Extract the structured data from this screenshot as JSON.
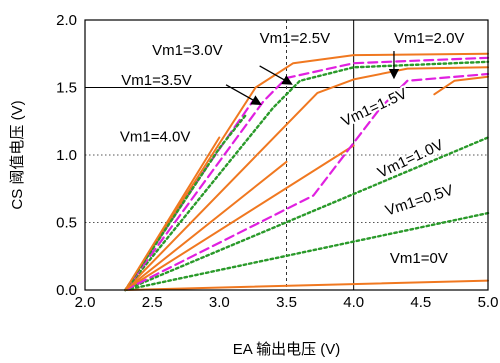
{
  "chart_data": {
    "type": "line",
    "xlabel": "EA 输出电压 (V)",
    "ylabel": "CS 阈值电压 (V)",
    "xlim": [
      2.0,
      5.0
    ],
    "ylim": [
      0.0,
      2.0
    ],
    "x_ticks": [
      "2.0",
      "2.5",
      "3.0",
      "3.5",
      "4.0",
      "4.5",
      "5.0"
    ],
    "y_ticks": [
      "0.0",
      "0.5",
      "1.0",
      "1.5",
      "2.0"
    ],
    "grid": {
      "solid": [
        4.0
      ],
      "dotted_x": [
        3.5
      ],
      "dotted_y": [
        0.5,
        1.0,
        1.5
      ]
    },
    "colors": {
      "orange": "#f07820",
      "green": "#2a9a2a",
      "magenta": "#e020e0"
    },
    "series": [
      {
        "label": "Vm1=0V",
        "style": "orange-solid",
        "points": [
          [
            2.3,
            0.0
          ],
          [
            5.0,
            0.07
          ]
        ]
      },
      {
        "label": "Vm1=0.5V",
        "style": "green-dotted",
        "points": [
          [
            2.3,
            0.0
          ],
          [
            5.0,
            0.57
          ]
        ]
      },
      {
        "label": "Vm1=1.0V",
        "style": "green-dotted",
        "points": [
          [
            2.3,
            0.0
          ],
          [
            5.0,
            1.13
          ]
        ]
      },
      {
        "label": "Vm1=1.5V",
        "style": "orange-solid",
        "points": [
          [
            2.3,
            0.0
          ],
          [
            4.0,
            1.07
          ]
        ]
      },
      {
        "label": "Vm1=1.5V",
        "style": "magenta-dashed",
        "points": [
          [
            2.3,
            0.0
          ],
          [
            3.7,
            0.7
          ],
          [
            4.2,
            1.35
          ],
          [
            4.4,
            1.55
          ],
          [
            5.0,
            1.6
          ]
        ]
      },
      {
        "label": "Vm1=2.0V",
        "style": "orange-solid",
        "points": [
          [
            2.3,
            0.0
          ],
          [
            3.73,
            1.46
          ],
          [
            4.0,
            1.56
          ],
          [
            4.4,
            1.64
          ],
          [
            5.0,
            1.65
          ]
        ]
      },
      {
        "label": "Vm1=2.0V",
        "style": "orange-solid",
        "points": [
          [
            4.6,
            1.45
          ],
          [
            4.75,
            1.55
          ],
          [
            5.0,
            1.58
          ]
        ]
      },
      {
        "label": "Vm1=2.5V",
        "style": "green-dotted",
        "points": [
          [
            2.3,
            0.0
          ],
          [
            3.4,
            1.35
          ],
          [
            3.6,
            1.55
          ],
          [
            4.0,
            1.65
          ],
          [
            5.0,
            1.69
          ]
        ]
      },
      {
        "label": "Vm1=2.5V",
        "style": "magenta-dashed",
        "points": [
          [
            2.3,
            0.0
          ],
          [
            3.33,
            1.4
          ],
          [
            3.5,
            1.57
          ],
          [
            4.0,
            1.68
          ],
          [
            5.0,
            1.72
          ]
        ]
      },
      {
        "label": "Vm1=3.5V",
        "style": "magenta-dashed",
        "points": [
          [
            2.3,
            0.0
          ],
          [
            2.9,
            0.9
          ],
          [
            3.25,
            1.4
          ]
        ]
      },
      {
        "label": "Vm1=3.5V",
        "style": "orange-solid",
        "points": [
          [
            2.3,
            0.0
          ],
          [
            2.75,
            0.7
          ],
          [
            3.27,
            1.5
          ],
          [
            3.55,
            1.68
          ],
          [
            4.0,
            1.74
          ],
          [
            5.0,
            1.75
          ]
        ]
      },
      {
        "label": "Vm1=4.0V",
        "style": "green-dotted",
        "points": [
          [
            2.3,
            0.0
          ],
          [
            3.0,
            1.05
          ],
          [
            3.2,
            1.3
          ]
        ]
      },
      {
        "label": "Vm1=4.0V",
        "style": "orange-solid",
        "points": [
          [
            2.3,
            0.0
          ],
          [
            3.0,
            1.13
          ]
        ]
      },
      {
        "label": "Vm1=3.5V",
        "style": "orange-solid",
        "points": [
          [
            2.3,
            0.0
          ],
          [
            3.5,
            0.95
          ]
        ]
      }
    ],
    "annotations": [
      {
        "text": "Vm1=3.0V",
        "x": 2.5,
        "y": 1.74,
        "anchor": "start"
      },
      {
        "text": "Vm1=2.5V",
        "x": 3.3,
        "y": 1.83,
        "anchor": "start"
      },
      {
        "text": "Vm1=2.0V",
        "x": 4.3,
        "y": 1.83,
        "anchor": "start"
      },
      {
        "text": "Vm1=3.5V",
        "x": 2.27,
        "y": 1.52,
        "anchor": "start"
      },
      {
        "text": "Vm1=4.0V",
        "x": 2.26,
        "y": 1.1,
        "anchor": "start"
      },
      {
        "text": "Vm1=1.5V",
        "x": 3.93,
        "y": 1.21,
        "anchor": "start",
        "rotate": -25
      },
      {
        "text": "Vm1=1.0V",
        "x": 4.2,
        "y": 0.83,
        "anchor": "start",
        "rotate": -25
      },
      {
        "text": "Vm1=0.5V",
        "x": 4.25,
        "y": 0.55,
        "anchor": "start",
        "rotate": -18
      },
      {
        "text": "Vm1=0V",
        "x": 4.27,
        "y": 0.2,
        "anchor": "start"
      }
    ],
    "arrows": [
      {
        "from": [
          3.3,
          1.66
        ],
        "to": [
          3.53,
          1.53
        ]
      },
      {
        "from": [
          3.05,
          1.52
        ],
        "to": [
          3.3,
          1.38
        ]
      },
      {
        "from": [
          4.3,
          1.77
        ],
        "to": [
          4.3,
          1.58
        ]
      }
    ]
  }
}
